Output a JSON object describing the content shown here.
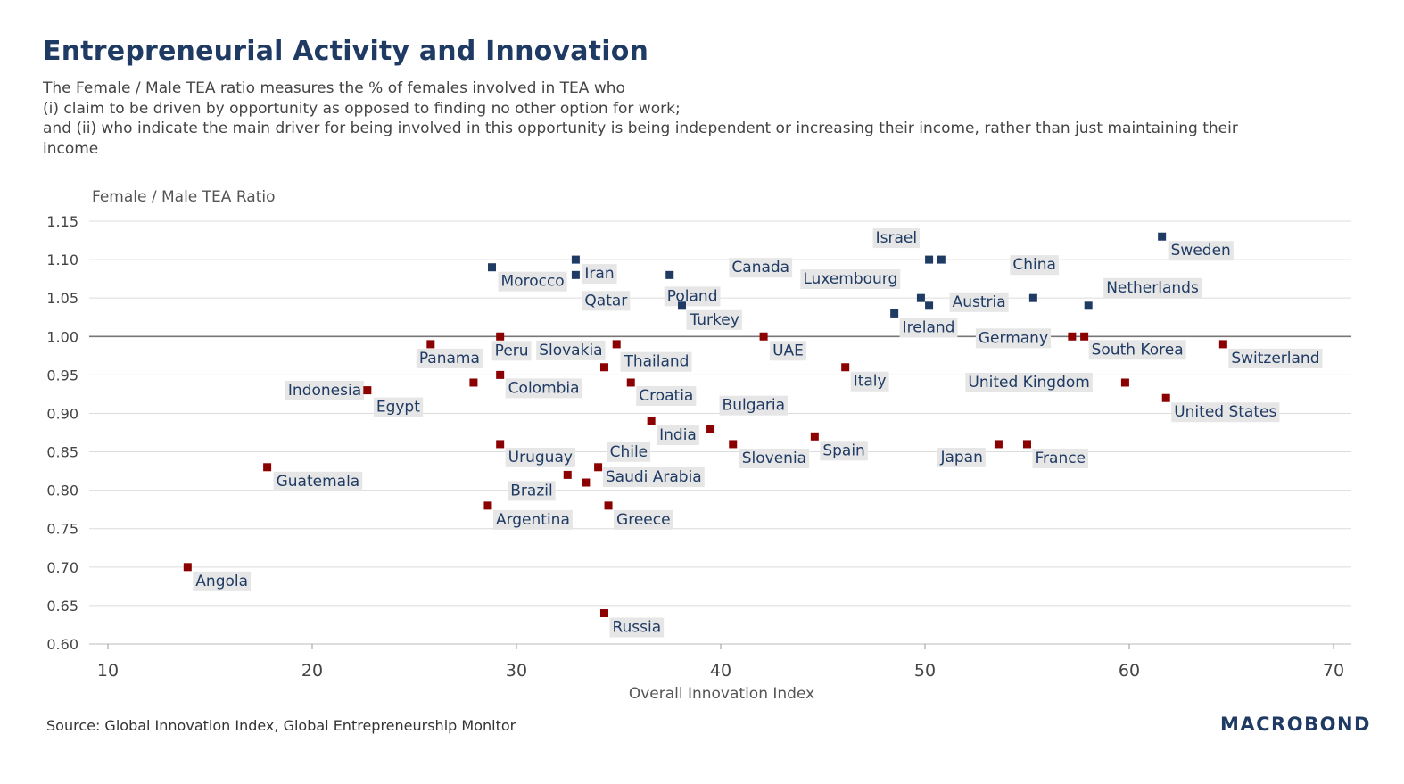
{
  "header": {
    "title": "Entrepreneurial Activity and Innovation",
    "subtitle_lines": [
      "The Female / Male TEA ratio measures the % of females involved in TEA who",
      "(i) claim to be driven by opportunity as opposed to finding no other option for work;",
      "and (ii) who indicate the main driver for being involved in this opportunity is being independent or increasing their income, rather than just maintaining their",
      "income"
    ]
  },
  "footer": {
    "source": "Source: Global Innovation Index, Global Entrepreneurship Monitor",
    "logo": "MACROBOND"
  },
  "colors": {
    "above": "#1f3a63",
    "below": "#8b0000",
    "grid": "#dcdcdc",
    "reference_line": "#777777",
    "label_text": "#1f3a63",
    "label_bg": "#e6e6e6"
  },
  "chart_data": {
    "type": "scatter",
    "xlabel": "Overall Innovation Index",
    "ylabel": "Female / Male TEA Ratio",
    "xlim": [
      10,
      70
    ],
    "ylim": [
      0.6,
      1.15
    ],
    "xticks": [
      10,
      20,
      30,
      40,
      50,
      60,
      70
    ],
    "yticks": [
      "0.60",
      "0.65",
      "0.70",
      "0.75",
      "0.80",
      "0.85",
      "0.90",
      "0.95",
      "1.00",
      "1.05",
      "1.10",
      "1.15"
    ],
    "reference_y": 1.0,
    "grid": "horizontal",
    "points": [
      {
        "name": "Sweden",
        "x": 61.6,
        "y": 1.13,
        "group": "above"
      },
      {
        "name": "Israel",
        "x": 50.2,
        "y": 1.1,
        "group": "above"
      },
      {
        "name": "Luxembourg",
        "x": 50.8,
        "y": 1.1,
        "group": "above"
      },
      {
        "name": "Morocco",
        "x": 28.8,
        "y": 1.09,
        "group": "above"
      },
      {
        "name": "Iran",
        "x": 32.9,
        "y": 1.1,
        "group": "above"
      },
      {
        "name": "Qatar",
        "x": 32.9,
        "y": 1.08,
        "group": "above"
      },
      {
        "name": "Poland",
        "x": 37.5,
        "y": 1.08,
        "group": "above"
      },
      {
        "name": "Turkey",
        "x": 38.1,
        "y": 1.04,
        "group": "above"
      },
      {
        "name": "Canada",
        "x": 49.8,
        "y": 1.05,
        "group": "above"
      },
      {
        "name": "Austria",
        "x": 50.2,
        "y": 1.04,
        "group": "above"
      },
      {
        "name": "Ireland",
        "x": 48.5,
        "y": 1.03,
        "group": "above"
      },
      {
        "name": "China",
        "x": 55.3,
        "y": 1.05,
        "group": "above"
      },
      {
        "name": "Netherlands",
        "x": 58.0,
        "y": 1.04,
        "group": "above"
      },
      {
        "name": "Germany",
        "x": 57.2,
        "y": 1.0,
        "group": "below"
      },
      {
        "name": "South Korea",
        "x": 57.8,
        "y": 1.0,
        "group": "below"
      },
      {
        "name": "Switzerland",
        "x": 64.6,
        "y": 0.99,
        "group": "below"
      },
      {
        "name": "Panama",
        "x": 25.8,
        "y": 0.99,
        "group": "below"
      },
      {
        "name": "Peru",
        "x": 29.2,
        "y": 1.0,
        "group": "below"
      },
      {
        "name": "Slovakia",
        "x": 34.9,
        "y": 0.99,
        "group": "below"
      },
      {
        "name": "Thailand",
        "x": 34.3,
        "y": 0.96,
        "group": "below"
      },
      {
        "name": "UAE",
        "x": 42.1,
        "y": 1.0,
        "group": "below"
      },
      {
        "name": "Italy",
        "x": 46.1,
        "y": 0.96,
        "group": "below"
      },
      {
        "name": "Indonesia",
        "x": 27.9,
        "y": 0.94,
        "group": "below"
      },
      {
        "name": "Egypt",
        "x": 22.7,
        "y": 0.93,
        "group": "below"
      },
      {
        "name": "Colombia",
        "x": 29.2,
        "y": 0.95,
        "group": "below"
      },
      {
        "name": "Croatia",
        "x": 35.6,
        "y": 0.94,
        "group": "below"
      },
      {
        "name": "United Kingdom",
        "x": 59.8,
        "y": 0.94,
        "group": "below"
      },
      {
        "name": "United States",
        "x": 61.8,
        "y": 0.92,
        "group": "below"
      },
      {
        "name": "India",
        "x": 36.6,
        "y": 0.89,
        "group": "below"
      },
      {
        "name": "Bulgaria",
        "x": 39.5,
        "y": 0.88,
        "group": "below"
      },
      {
        "name": "Slovenia",
        "x": 40.6,
        "y": 0.86,
        "group": "below"
      },
      {
        "name": "Spain",
        "x": 44.6,
        "y": 0.87,
        "group": "below"
      },
      {
        "name": "Japan",
        "x": 53.6,
        "y": 0.86,
        "group": "below"
      },
      {
        "name": "France",
        "x": 55.0,
        "y": 0.86,
        "group": "below"
      },
      {
        "name": "Uruguay",
        "x": 29.2,
        "y": 0.86,
        "group": "below"
      },
      {
        "name": "Chile",
        "x": 34.0,
        "y": 0.83,
        "group": "below"
      },
      {
        "name": "Brazil",
        "x": 32.5,
        "y": 0.82,
        "group": "below"
      },
      {
        "name": "Saudi Arabia",
        "x": 33.4,
        "y": 0.81,
        "group": "below"
      },
      {
        "name": "Guatemala",
        "x": 17.8,
        "y": 0.83,
        "group": "below"
      },
      {
        "name": "Argentina",
        "x": 28.6,
        "y": 0.78,
        "group": "below"
      },
      {
        "name": "Greece",
        "x": 34.5,
        "y": 0.78,
        "group": "below"
      },
      {
        "name": "Angola",
        "x": 13.9,
        "y": 0.7,
        "group": "below"
      },
      {
        "name": "Russia",
        "x": 34.3,
        "y": 0.64,
        "group": "below"
      }
    ]
  }
}
